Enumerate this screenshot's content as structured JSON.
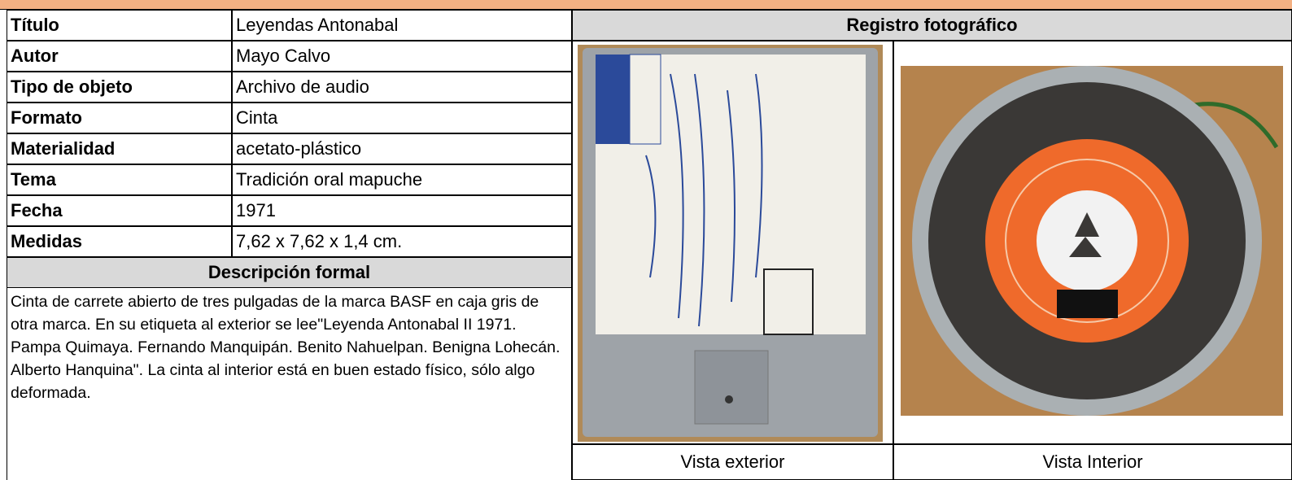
{
  "fields": [
    {
      "label": "Título",
      "value": "Leyendas Antonabal"
    },
    {
      "label": "Autor",
      "value": "Mayo Calvo"
    },
    {
      "label": "Tipo de objeto",
      "value": "Archivo de audio"
    },
    {
      "label": "Formato",
      "value": "Cinta"
    },
    {
      "label": "Materialidad",
      "value": "acetato-plástico"
    },
    {
      "label": "Tema",
      "value": "Tradición oral mapuche"
    },
    {
      "label": "Fecha",
      "value": "1971"
    },
    {
      "label": "Medidas",
      "value": "7,62 x 7,62 x 1,4 cm."
    }
  ],
  "description": {
    "title": "Descripción formal",
    "text": "Cinta de carrete abierto de tres pulgadas de la marca BASF en caja gris de otra marca. En su etiqueta al exterior se lee\"Leyenda Antonabal II 1971. Pampa Quimaya. Fernando Manquipán. Benito Nahuelpan. Benigna Lohecán. Alberto Hanquina\". La cinta al interior está en buen estado físico, sólo algo deformada."
  },
  "photos": {
    "title": "Registro fotográfico",
    "captions": [
      "Vista exterior",
      "Vista Interior"
    ]
  }
}
